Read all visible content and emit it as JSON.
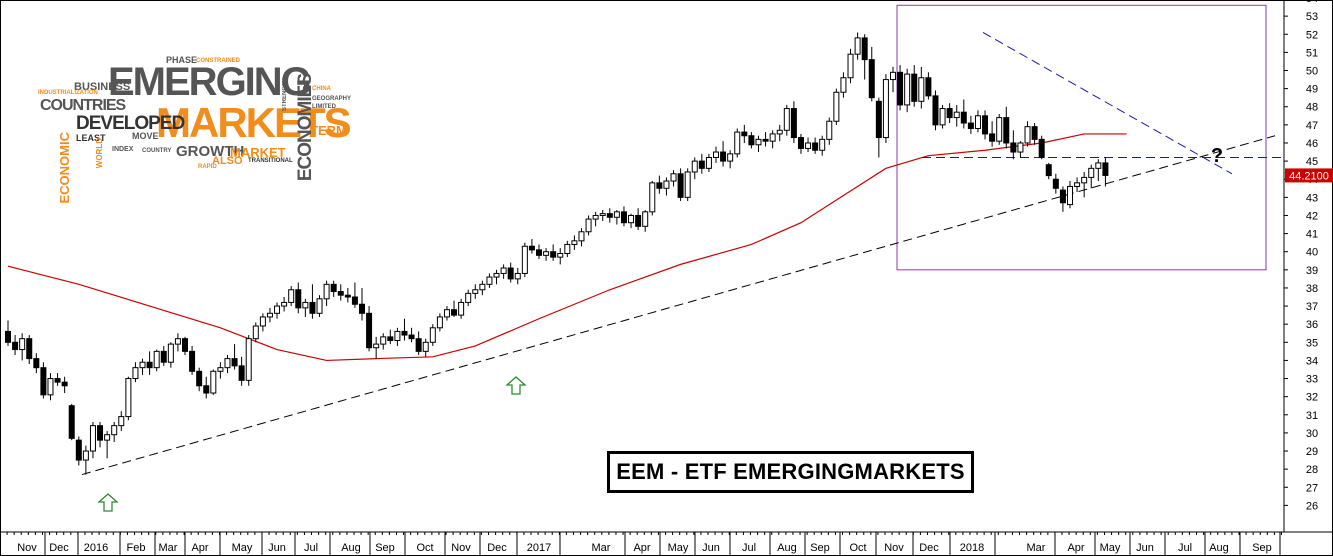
{
  "title": "EEM - ETF EMERGINGMARKETS",
  "price_label": "44.2100",
  "annotation": "?",
  "colors": {
    "moving_average": "#cc0000",
    "trendline_up": "#000000",
    "trendline_down": "#1a1aa6",
    "horizontal_level": "#1a1aa6",
    "highlight_box": "#8e3aa8",
    "price_label_bg": "#cc0000",
    "arrow": "#2e8b2e",
    "cloud_orange": "#f28c1a",
    "cloud_gray": "#555555"
  },
  "wordcloud": {
    "words": [
      "EMERGING",
      "MARKETS",
      "COUNTRIES",
      "DEVELOPED",
      "ECONOMIES",
      "BUSINESS",
      "ECONOMIC",
      "GROWTH",
      "MARKET",
      "TERM",
      "ALSO",
      "INDUSTRIALIZATION",
      "PHASE",
      "LEAST",
      "TRANSITIONAL",
      "CONSTRAINED",
      "GEOGRAPHY",
      "LIMITED",
      "COUNTRY",
      "MOVE",
      "WORLD",
      "INDEX",
      "STRENGTH",
      "RAPID",
      "CHINA"
    ]
  },
  "chart_data": {
    "type": "candlestick",
    "title": "EEM - ETF EMERGINGMARKETS",
    "frequency": "weekly",
    "ylim": [
      25,
      54
    ],
    "y_ticks": [
      26,
      27,
      28,
      29,
      30,
      31,
      32,
      33,
      34,
      35,
      36,
      37,
      38,
      39,
      40,
      41,
      42,
      43,
      44,
      45,
      46,
      47,
      48,
      49,
      50,
      51,
      52,
      53,
      54
    ],
    "x_labels": [
      "Nov",
      "Dec",
      "2016",
      "Feb",
      "Mar",
      "Apr",
      "May",
      "Jun",
      "Jul",
      "Aug",
      "Sep",
      "Oct",
      "Nov",
      "Dec",
      "2017",
      "Mar",
      "Apr",
      "May",
      "Jun",
      "Jul",
      "Aug",
      "Sep",
      "Oct",
      "Nov",
      "Dec",
      "2018",
      "Mar",
      "Apr",
      "May",
      "Jun",
      "Jul",
      "Aug",
      "Sep"
    ],
    "last_price": 44.21,
    "candles_ohlc": [
      [
        35.6,
        36.2,
        34.8,
        35.0
      ],
      [
        35.0,
        35.4,
        34.3,
        34.6
      ],
      [
        34.6,
        35.5,
        34.0,
        35.2
      ],
      [
        35.2,
        35.4,
        33.8,
        34.1
      ],
      [
        34.1,
        34.4,
        33.3,
        33.6
      ],
      [
        33.6,
        33.9,
        31.9,
        32.1
      ],
      [
        32.1,
        33.3,
        31.8,
        33.0
      ],
      [
        33.0,
        33.3,
        32.6,
        32.8
      ],
      [
        32.8,
        33.1,
        32.2,
        32.6
      ],
      [
        31.5,
        31.6,
        29.6,
        29.7
      ],
      [
        29.6,
        29.8,
        28.2,
        28.5
      ],
      [
        28.5,
        29.3,
        27.7,
        29.0
      ],
      [
        29.0,
        30.6,
        28.6,
        30.4
      ],
      [
        30.4,
        30.6,
        29.2,
        29.6
      ],
      [
        29.6,
        30.1,
        28.6,
        29.9
      ],
      [
        29.9,
        30.6,
        29.5,
        30.4
      ],
      [
        30.4,
        31.2,
        30.1,
        30.9
      ],
      [
        30.9,
        33.1,
        30.7,
        33.0
      ],
      [
        33.0,
        33.9,
        32.8,
        33.6
      ],
      [
        33.6,
        34.1,
        33.2,
        33.9
      ],
      [
        33.9,
        34.5,
        33.2,
        33.6
      ],
      [
        33.6,
        34.6,
        33.4,
        34.5
      ],
      [
        34.5,
        34.8,
        33.7,
        33.9
      ],
      [
        33.9,
        35.0,
        33.6,
        34.9
      ],
      [
        34.9,
        35.5,
        34.5,
        35.2
      ],
      [
        35.2,
        35.3,
        34.3,
        34.5
      ],
      [
        34.5,
        34.8,
        33.2,
        33.4
      ],
      [
        33.4,
        33.6,
        32.3,
        32.6
      ],
      [
        32.6,
        33.1,
        31.9,
        32.2
      ],
      [
        32.2,
        33.5,
        32.1,
        33.4
      ],
      [
        33.4,
        33.9,
        33.0,
        33.6
      ],
      [
        33.6,
        34.3,
        33.3,
        34.1
      ],
      [
        34.1,
        34.9,
        33.5,
        33.7
      ],
      [
        33.7,
        34.2,
        32.6,
        32.9
      ],
      [
        32.9,
        35.4,
        32.6,
        35.2
      ],
      [
        35.2,
        36.1,
        35.0,
        35.9
      ],
      [
        35.9,
        36.6,
        35.6,
        36.4
      ],
      [
        36.4,
        36.9,
        36.1,
        36.6
      ],
      [
        36.6,
        37.2,
        36.3,
        37.0
      ],
      [
        37.0,
        37.5,
        36.7,
        37.2
      ],
      [
        37.2,
        38.1,
        37.0,
        37.9
      ],
      [
        37.9,
        38.3,
        36.6,
        36.9
      ],
      [
        36.9,
        37.4,
        36.4,
        37.2
      ],
      [
        37.2,
        38.2,
        36.3,
        36.6
      ],
      [
        36.6,
        37.6,
        36.4,
        37.4
      ],
      [
        37.4,
        38.4,
        37.0,
        38.2
      ],
      [
        38.2,
        38.4,
        37.5,
        37.8
      ],
      [
        37.8,
        38.2,
        37.3,
        37.6
      ],
      [
        37.6,
        38.0,
        37.2,
        37.5
      ],
      [
        37.5,
        38.3,
        36.9,
        37.1
      ],
      [
        37.1,
        38.0,
        36.2,
        36.6
      ],
      [
        36.6,
        37.0,
        34.5,
        34.7
      ],
      [
        34.7,
        35.3,
        34.1,
        34.9
      ],
      [
        34.9,
        35.5,
        34.6,
        35.3
      ],
      [
        35.3,
        35.7,
        34.9,
        35.1
      ],
      [
        35.1,
        35.8,
        34.8,
        35.6
      ],
      [
        35.6,
        36.3,
        35.1,
        35.4
      ],
      [
        35.4,
        35.8,
        35.0,
        35.2
      ],
      [
        35.2,
        35.6,
        34.3,
        34.5
      ],
      [
        34.5,
        35.2,
        34.2,
        35.0
      ],
      [
        35.0,
        36.0,
        34.8,
        35.8
      ],
      [
        35.8,
        36.6,
        35.6,
        36.4
      ],
      [
        36.4,
        37.0,
        36.2,
        36.8
      ],
      [
        36.8,
        37.3,
        36.4,
        36.5
      ],
      [
        36.5,
        37.4,
        36.3,
        37.2
      ],
      [
        37.2,
        37.9,
        37.0,
        37.7
      ],
      [
        37.7,
        38.2,
        37.4,
        37.9
      ],
      [
        37.9,
        38.4,
        37.6,
        38.2
      ],
      [
        38.2,
        38.8,
        38.0,
        38.6
      ],
      [
        38.6,
        39.0,
        38.2,
        38.8
      ],
      [
        38.8,
        39.3,
        38.5,
        39.1
      ],
      [
        39.1,
        39.4,
        38.3,
        38.5
      ],
      [
        38.5,
        39.1,
        38.2,
        38.8
      ],
      [
        38.8,
        40.5,
        38.6,
        40.3
      ],
      [
        40.3,
        40.7,
        39.9,
        40.1
      ],
      [
        40.1,
        40.4,
        39.6,
        39.8
      ],
      [
        39.8,
        40.2,
        39.5,
        40.0
      ],
      [
        40.0,
        40.4,
        39.5,
        39.7
      ],
      [
        39.7,
        40.2,
        39.3,
        39.9
      ],
      [
        39.9,
        40.6,
        39.7,
        40.4
      ],
      [
        40.4,
        40.9,
        40.1,
        40.6
      ],
      [
        40.6,
        41.3,
        40.3,
        41.1
      ],
      [
        41.1,
        42.0,
        40.9,
        41.8
      ],
      [
        41.8,
        42.2,
        41.4,
        42.0
      ],
      [
        42.0,
        42.3,
        41.7,
        42.1
      ],
      [
        42.1,
        42.4,
        41.6,
        41.9
      ],
      [
        41.9,
        42.3,
        41.5,
        42.2
      ],
      [
        42.2,
        42.5,
        41.4,
        41.6
      ],
      [
        41.6,
        42.1,
        41.3,
        42.0
      ],
      [
        42.0,
        42.4,
        41.2,
        41.4
      ],
      [
        41.4,
        42.3,
        41.1,
        42.2
      ],
      [
        42.2,
        43.9,
        42.0,
        43.8
      ],
      [
        43.8,
        44.2,
        43.2,
        43.5
      ],
      [
        43.5,
        44.1,
        43.1,
        43.9
      ],
      [
        43.9,
        44.5,
        43.6,
        44.3
      ],
      [
        44.3,
        44.6,
        42.8,
        43.0
      ],
      [
        43.0,
        44.6,
        42.8,
        44.4
      ],
      [
        44.4,
        45.2,
        44.0,
        45.0
      ],
      [
        45.0,
        45.4,
        44.3,
        44.6
      ],
      [
        44.6,
        45.4,
        44.4,
        45.2
      ],
      [
        45.2,
        45.8,
        44.9,
        45.5
      ],
      [
        45.5,
        46.1,
        44.7,
        45.0
      ],
      [
        45.0,
        45.6,
        44.6,
        45.4
      ],
      [
        45.4,
        46.8,
        45.2,
        46.6
      ],
      [
        46.6,
        47.0,
        46.0,
        46.4
      ],
      [
        46.4,
        46.6,
        45.7,
        45.9
      ],
      [
        45.9,
        46.4,
        45.5,
        46.2
      ],
      [
        46.2,
        46.6,
        45.8,
        46.1
      ],
      [
        46.1,
        46.7,
        45.7,
        46.5
      ],
      [
        46.5,
        47.0,
        46.1,
        46.7
      ],
      [
        46.7,
        48.1,
        46.4,
        47.9
      ],
      [
        47.9,
        48.3,
        46.0,
        46.3
      ],
      [
        46.3,
        46.5,
        45.4,
        45.7
      ],
      [
        45.7,
        46.3,
        45.5,
        46.0
      ],
      [
        46.0,
        46.3,
        45.4,
        45.6
      ],
      [
        45.6,
        46.4,
        45.3,
        46.2
      ],
      [
        46.2,
        47.4,
        45.9,
        47.2
      ],
      [
        47.2,
        49.0,
        47.0,
        48.8
      ],
      [
        48.8,
        49.9,
        48.5,
        49.6
      ],
      [
        49.6,
        51.2,
        49.3,
        50.9
      ],
      [
        50.9,
        52.1,
        50.6,
        51.8
      ],
      [
        51.8,
        52.0,
        49.5,
        50.6
      ],
      [
        50.6,
        51.3,
        48.3,
        48.5
      ],
      [
        48.3,
        48.5,
        45.2,
        46.3
      ],
      [
        46.3,
        49.8,
        46.0,
        49.5
      ],
      [
        49.5,
        50.2,
        48.8,
        49.9
      ],
      [
        49.9,
        50.3,
        47.8,
        48.1
      ],
      [
        48.1,
        50.1,
        47.7,
        49.8
      ],
      [
        49.8,
        50.3,
        48.0,
        48.3
      ],
      [
        48.3,
        50.2,
        47.9,
        49.6
      ],
      [
        49.6,
        49.9,
        48.4,
        48.6
      ],
      [
        48.6,
        48.9,
        46.7,
        47.0
      ],
      [
        47.0,
        48.1,
        46.8,
        47.9
      ],
      [
        47.9,
        48.2,
        47.1,
        47.4
      ],
      [
        47.4,
        48.1,
        46.9,
        47.7
      ],
      [
        47.7,
        48.4,
        46.8,
        47.1
      ],
      [
        47.1,
        47.5,
        46.5,
        46.8
      ],
      [
        46.8,
        47.8,
        46.6,
        47.5
      ],
      [
        47.5,
        47.8,
        46.2,
        46.5
      ],
      [
        46.5,
        47.2,
        45.8,
        46.1
      ],
      [
        46.1,
        47.6,
        45.9,
        47.4
      ],
      [
        47.4,
        48.0,
        45.7,
        46.0
      ],
      [
        46.0,
        46.7,
        45.1,
        45.5
      ],
      [
        45.5,
        46.1,
        45.2,
        46.0
      ],
      [
        46.0,
        47.2,
        45.8,
        46.9
      ],
      [
        46.9,
        47.1,
        45.9,
        46.2
      ],
      [
        46.2,
        46.4,
        45.1,
        45.2
      ],
      [
        44.8,
        44.9,
        44.0,
        44.2
      ],
      [
        44.0,
        44.3,
        43.2,
        43.5
      ],
      [
        43.4,
        43.6,
        42.2,
        42.7
      ],
      [
        42.6,
        43.9,
        42.4,
        43.6
      ],
      [
        43.6,
        44.1,
        43.3,
        43.8
      ],
      [
        43.8,
        44.4,
        43.0,
        44.1
      ],
      [
        44.1,
        44.8,
        43.5,
        44.6
      ],
      [
        44.6,
        45.1,
        43.9,
        44.9
      ],
      [
        44.9,
        45.2,
        43.6,
        44.21
      ]
    ],
    "moving_average": {
      "points": [
        [
          0,
          39.2
        ],
        [
          10,
          38.2
        ],
        [
          20,
          37.0
        ],
        [
          30,
          35.8
        ],
        [
          38,
          34.6
        ],
        [
          45,
          34.0
        ],
        [
          52,
          34.1
        ],
        [
          60,
          34.2
        ],
        [
          66,
          34.8
        ],
        [
          75,
          36.3
        ],
        [
          85,
          37.9
        ],
        [
          95,
          39.3
        ],
        [
          105,
          40.4
        ],
        [
          112,
          41.6
        ],
        [
          118,
          43.1
        ],
        [
          124,
          44.6
        ],
        [
          130,
          45.3
        ],
        [
          138,
          45.6
        ],
        [
          146,
          46.0
        ],
        [
          152,
          46.5
        ],
        [
          158,
          46.5
        ]
      ]
    },
    "trendline_up": {
      "from": [
        11,
        27.7
      ],
      "to": [
        168,
        46.4
      ]
    },
    "trendline_down": {
      "from": [
        123,
        52.1
      ],
      "to": [
        162,
        44.3
      ]
    },
    "horizontal_level": {
      "value": 45.2,
      "from": 111,
      "to": 168
    },
    "highlight_box": {
      "x_from": 111,
      "x_to": 158,
      "y_from": 39.0,
      "y_to": 53.6
    },
    "up_arrows": [
      {
        "x": 12
      },
      {
        "x": 64
      }
    ]
  }
}
